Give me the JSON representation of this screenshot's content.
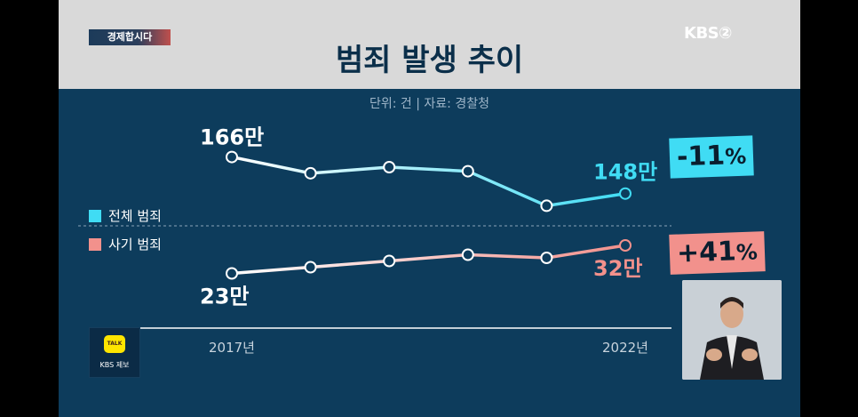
{
  "header": {
    "segment": "경제합시다",
    "channel_logo": "KBS②",
    "title": "범죄 발생 추이"
  },
  "source_line": "단위: 건   |   자료: 경찰청",
  "legend": [
    {
      "label": "전체 범죄",
      "color": "#40dcf4"
    },
    {
      "label": "사기 범죄",
      "color": "#f2918c"
    }
  ],
  "badges": {
    "total_change": "-11",
    "fraud_change": "+41",
    "percent_sign": "%"
  },
  "kakao": {
    "icon_text": "TALK",
    "label": "KBS 제보"
  },
  "chart_data": {
    "type": "line",
    "title": "범죄 발생 추이",
    "unit": "건",
    "source": "경찰청",
    "x": [
      "2017년",
      "",
      "",
      "",
      "",
      "2022년"
    ],
    "series": [
      {
        "name": "전체 범죄",
        "values": [
          1660000,
          1580000,
          1610000,
          1590000,
          1420000,
          1480000
        ],
        "color": "#40dcf4",
        "labels": {
          "first": "166만",
          "last": "148만"
        }
      },
      {
        "name": "사기 범죄",
        "values": [
          230000,
          250000,
          270000,
          290000,
          280000,
          320000
        ],
        "color": "#f2918c",
        "labels": {
          "first": "23만",
          "last": "32만"
        }
      }
    ],
    "changes": {
      "전체 범죄": "-11%",
      "사기 범죄": "+41%"
    }
  }
}
